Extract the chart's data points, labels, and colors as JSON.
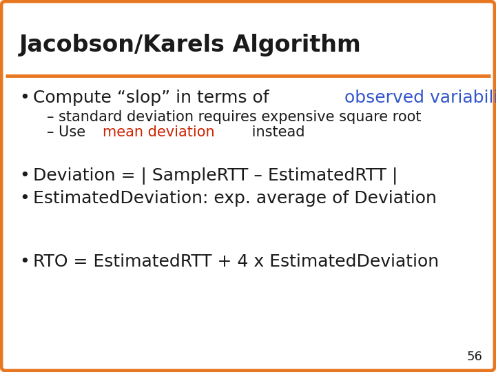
{
  "title": "Jacobson/Karels Algorithm",
  "title_fontsize": 24,
  "border_color": "#E87722",
  "border_linewidth": 3.5,
  "background_color": "#ffffff",
  "page_number": "56",
  "bullet1_prefix": "Compute “slop” in terms of ",
  "bullet1_colored": "observed variability",
  "bullet1_color": "#3355cc",
  "sub1": "– standard deviation requires expensive square root",
  "sub2_prefix": "– Use ",
  "sub2_colored": "mean deviation",
  "sub2_color": "#cc2200",
  "sub2_suffix": " instead",
  "bullet2": "Deviation = | SampleRTT – EstimatedRTT |",
  "bullet3": "EstimatedDeviation: exp. average of Deviation",
  "bullet4": "RTO = EstimatedRTT + 4 x EstimatedDeviation",
  "body_fontsize": 18,
  "sub_fontsize": 15,
  "text_color": "#1a1a1a",
  "font_family": "DejaVu Sans"
}
